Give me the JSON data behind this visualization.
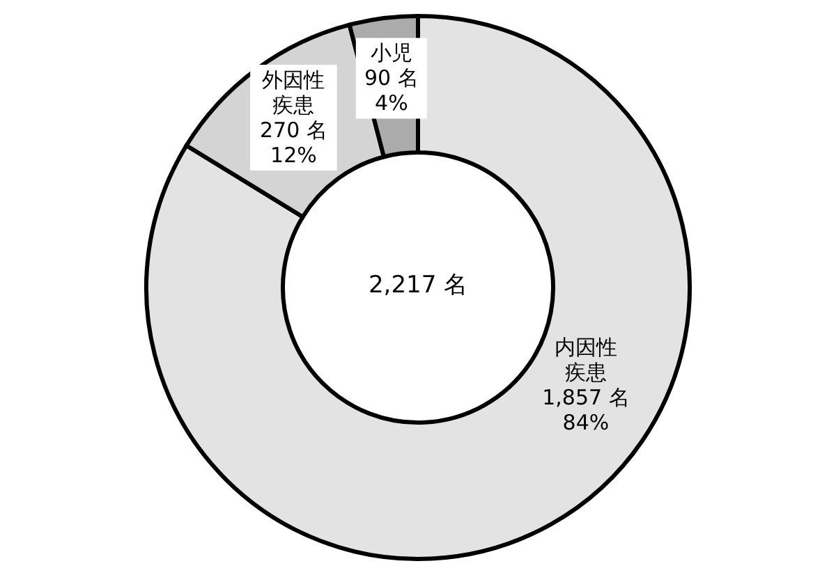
{
  "chart_data": {
    "type": "donut",
    "categories": [
      "内因性疾患",
      "外因性疾患",
      "小児"
    ],
    "values": [
      1857,
      270,
      90
    ],
    "colors": [
      "#e3e3e3",
      "#d4d4d4",
      "#ababab"
    ],
    "value_labels": [
      "1,857 名\n84%",
      "270 名\n12%",
      "90 名\n4%"
    ],
    "annotations": [
      "2,217 名"
    ],
    "legend": false
  }
}
